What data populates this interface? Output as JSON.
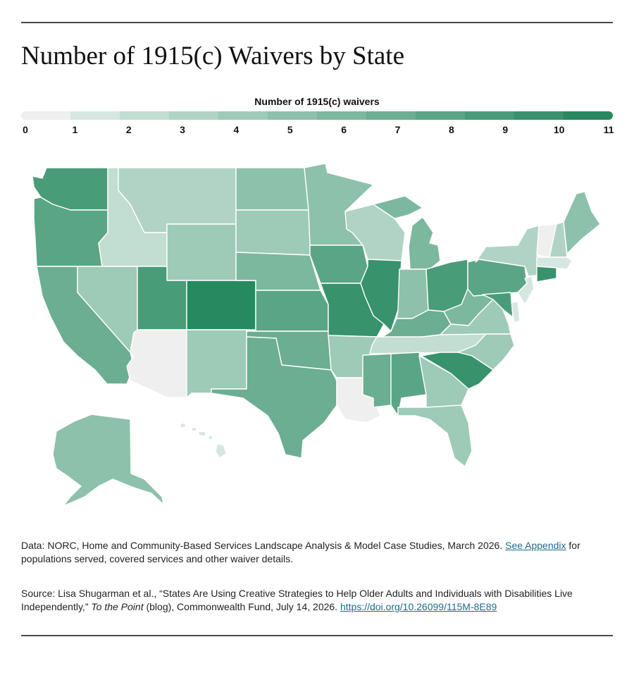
{
  "title": "Number of 1915(c) Waivers by State",
  "legend": {
    "title": "Number of 1915(c) waivers",
    "ticks": [
      "0",
      "1",
      "2",
      "3",
      "4",
      "5",
      "6",
      "7",
      "8",
      "9",
      "10",
      "11"
    ],
    "colors": [
      "#efefef",
      "#d5e7e0",
      "#c2ddd2",
      "#b0d3c5",
      "#9ecab8",
      "#8dc1ab",
      "#7cb89e",
      "#6bae91",
      "#5aa585",
      "#499c78",
      "#38926b",
      "#27895e"
    ]
  },
  "map": {
    "type": "choropleth",
    "value_label": "Number of 1915(c) waivers",
    "levels": {
      "WA": 9,
      "OR": 8,
      "CA": 7,
      "NV": 4,
      "ID": 2,
      "MT": 3,
      "WY": 4,
      "UT": 9,
      "AZ": 0,
      "CO": 11,
      "NM": 4,
      "ND": 5,
      "SD": 4,
      "NE": 6,
      "KS": 8,
      "OK": 7,
      "TX": 7,
      "MN": 5,
      "IA": 8,
      "MO": 10,
      "AR": 4,
      "LA": 0,
      "WI": 3,
      "IL": 10,
      "MI": 6,
      "IN": 5,
      "OH": 9,
      "KY": 7,
      "TN": 2,
      "MS": 7,
      "AL": 8,
      "WV": 6,
      "VA": 4,
      "NC": 4,
      "SC": 10,
      "GA": 4,
      "FL": 4,
      "PA": 8,
      "NY": 3,
      "VT": 0,
      "NH": 3,
      "ME": 5,
      "MA": 1,
      "CT": 10,
      "NJ": 1,
      "DE": 1,
      "MD": 9,
      "AK": 5,
      "HI": 1
    }
  },
  "notes": {
    "data_text": "Data: NORC, Home and Community-Based Services Landscape Analysis & Model Case Studies, March 2026.",
    "data_link": "See Appendix",
    "data_text_after": "for populations served, covered services and other waiver details.",
    "source_text": "Source: Lisa Shugarman et al., “States Are Using Creative Strategies to Help Older Adults and Individuals with Disabilities Live Independently,”",
    "source_italic": "To the Point",
    "source_text_after": "(blog), Commonwealth Fund, July 14, 2026.",
    "source_link": "https://doi.org/10.26099/115M-8E89"
  }
}
